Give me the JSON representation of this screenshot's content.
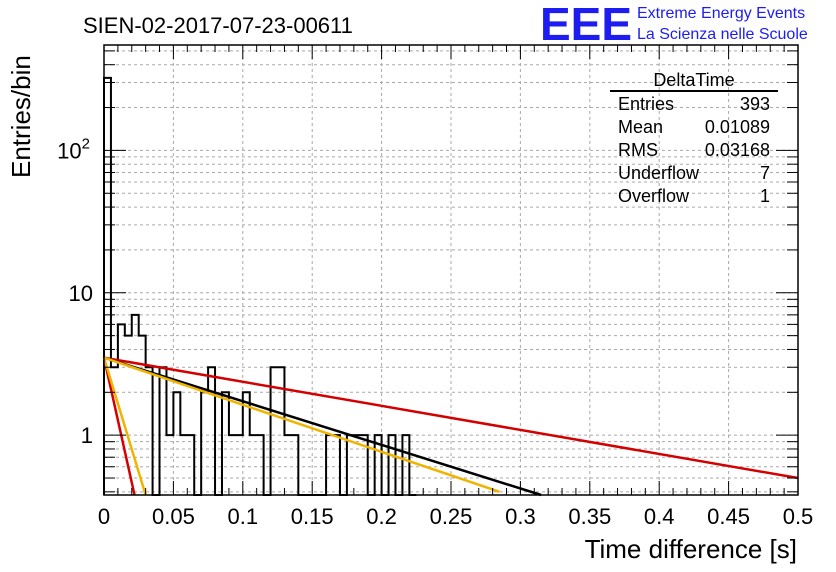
{
  "chart_data": {
    "type": "bar",
    "title": "SIEN-02-2017-07-23-00611",
    "xlabel": "Time difference [s]",
    "ylabel": "Entries/bin",
    "xlim": [
      0,
      0.5
    ],
    "ylim": [
      0.38,
      550
    ],
    "yscale": "log",
    "grid": true,
    "x_ticks": [
      "0",
      "0.05",
      "0.1",
      "0.15",
      "0.2",
      "0.25",
      "0.3",
      "0.35",
      "0.4",
      "0.45",
      "0.5"
    ],
    "y_ticks": [
      {
        "value": 1,
        "base": "1",
        "exp": ""
      },
      {
        "value": 10,
        "base": "10",
        "exp": ""
      },
      {
        "value": 100,
        "base": "10",
        "exp": "2"
      }
    ],
    "bin_width": 0.005,
    "histogram_values": [
      323,
      3,
      6,
      5,
      7,
      5,
      3,
      0,
      3,
      1,
      2,
      1,
      1,
      0,
      2,
      3,
      0,
      2,
      1,
      1,
      2,
      1,
      1,
      0,
      3,
      3,
      1,
      1,
      0,
      0,
      0,
      0,
      1,
      1,
      0,
      1,
      1,
      1,
      0,
      1,
      0,
      1,
      0,
      1,
      0
    ],
    "fit_lines": [
      {
        "color": "#d40000",
        "x": [
          0,
          0.5
        ],
        "y": [
          3.5,
          0.5
        ]
      },
      {
        "color": "#000000",
        "x": [
          0,
          0.315
        ],
        "y": [
          3.5,
          0.38
        ]
      },
      {
        "color": "#f0b400",
        "x": [
          0,
          0.285
        ],
        "y": [
          3.5,
          0.4
        ]
      },
      {
        "color": "#d40000",
        "x": [
          0,
          0.022
        ],
        "y": [
          3.5,
          0.38
        ]
      },
      {
        "color": "#f0b400",
        "x": [
          0,
          0.03
        ],
        "y": [
          3.5,
          0.38
        ]
      }
    ],
    "stats_box": {
      "title": "DeltaTime",
      "rows": [
        {
          "label": "Entries",
          "value": "393"
        },
        {
          "label": "Mean",
          "value": "0.01089"
        },
        {
          "label": "RMS",
          "value": "0.03168"
        },
        {
          "label": "Underflow",
          "value": "7"
        },
        {
          "label": "Overflow",
          "value": "1"
        }
      ]
    },
    "logo": {
      "text": "EEE",
      "line1": "Extreme Energy Events",
      "line2": "La Scienza nelle Scuole"
    }
  }
}
